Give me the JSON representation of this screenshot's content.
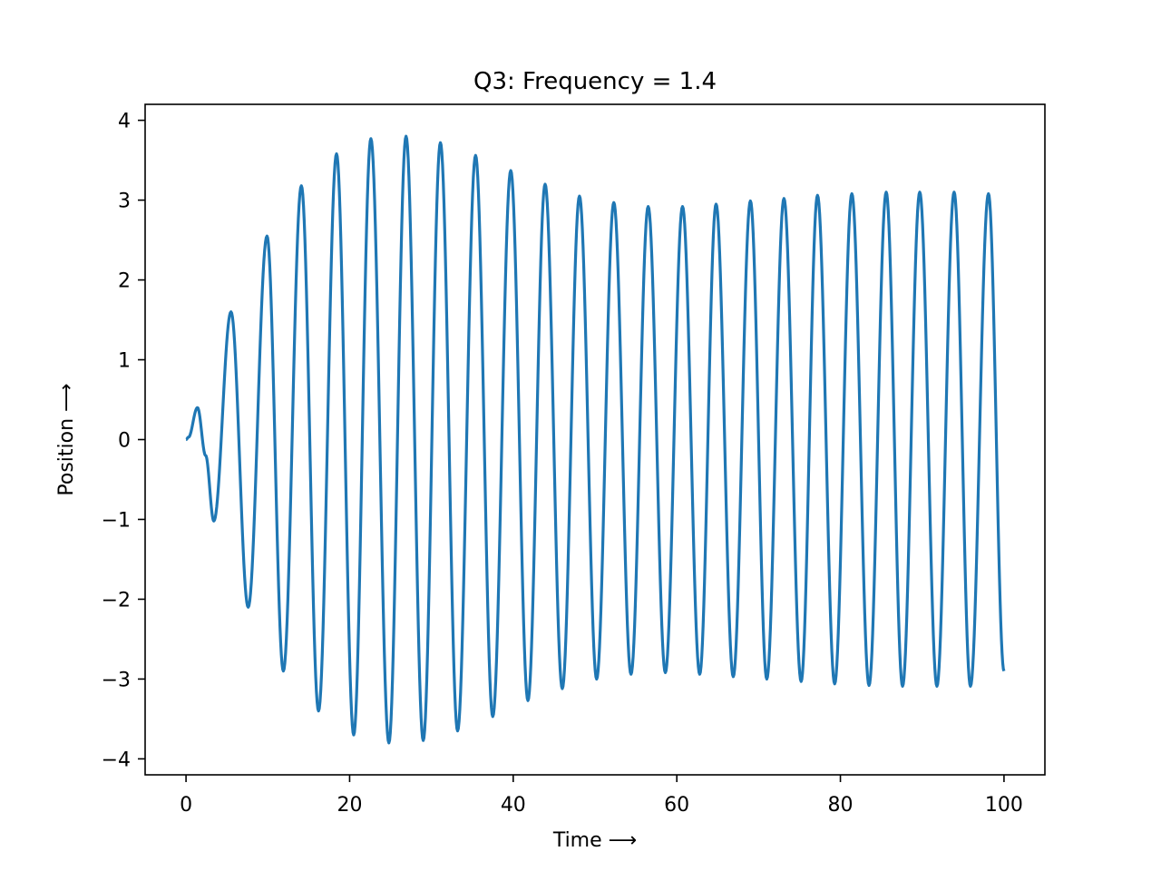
{
  "chart_data": {
    "type": "line",
    "title": "Q3: Frequency = 1.4",
    "xlabel": "Time ⟶",
    "ylabel": "Position ⟶",
    "xlim": [
      -5,
      105
    ],
    "ylim": [
      -4.2,
      4.2
    ],
    "xticks": [
      0,
      20,
      40,
      60,
      80,
      100
    ],
    "xtick_labels": [
      "0",
      "20",
      "40",
      "60",
      "80",
      "100"
    ],
    "yticks": [
      -4,
      -3,
      -2,
      -1,
      0,
      1,
      2,
      3,
      4
    ],
    "ytick_labels": [
      "−4",
      "−3",
      "−2",
      "−1",
      "0",
      "1",
      "2",
      "3",
      "4"
    ],
    "grid": false,
    "legend": "none",
    "series": [
      {
        "color": "#1f77b4",
        "x_range": [
          0,
          100
        ],
        "x": [
          0,
          0.3,
          1.4,
          2.4,
          3.4,
          5.5,
          7.6,
          9.9,
          11.9,
          14.1,
          16.2,
          18.4,
          20.5,
          22.6,
          24.8,
          26.9,
          29.0,
          31.1,
          33.2,
          35.4,
          37.5,
          39.7,
          41.8,
          43.9,
          46.0,
          48.1,
          50.2,
          52.3,
          54.4,
          56.5,
          58.6,
          60.7,
          62.8,
          64.8,
          66.9,
          69.0,
          71.0,
          73.1,
          75.2,
          77.2,
          79.3,
          81.4,
          83.5,
          85.6,
          87.6,
          89.7,
          91.8,
          93.9,
          95.9,
          98.1,
          100.0
        ],
        "y": [
          0,
          0.03,
          0.4,
          -0.2,
          -1.02,
          1.6,
          -2.1,
          2.55,
          -2.9,
          3.18,
          -3.4,
          3.58,
          -3.7,
          3.77,
          -3.8,
          3.8,
          -3.77,
          3.72,
          -3.65,
          3.56,
          -3.47,
          3.37,
          -3.27,
          3.2,
          -3.12,
          3.05,
          -3.0,
          2.97,
          -2.94,
          2.92,
          -2.92,
          2.92,
          -2.94,
          2.95,
          -2.97,
          2.99,
          -3.0,
          3.02,
          -3.03,
          3.06,
          -3.06,
          3.08,
          -3.08,
          3.1,
          -3.09,
          3.1,
          -3.09,
          3.1,
          -3.09,
          3.08,
          -2.9
        ]
      }
    ]
  }
}
